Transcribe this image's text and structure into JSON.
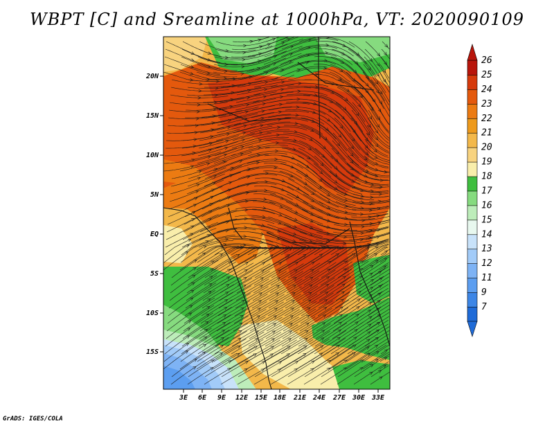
{
  "title": "WBPT [C] and Sreamline at 1000hPa, VT: 2020090109",
  "credit": "GrADS: IGES/COLA",
  "map": {
    "lat_labels": [
      "20N",
      "15N",
      "10N",
      "5N",
      "EQ",
      "5S",
      "10S",
      "15S"
    ],
    "lon_labels": [
      "3E",
      "6E",
      "9E",
      "12E",
      "15E",
      "18E",
      "21E",
      "24E",
      "27E",
      "30E",
      "33E"
    ]
  },
  "colorbar": {
    "labels": [
      "7",
      "9",
      "11",
      "12",
      "13",
      "14",
      "15",
      "16",
      "17",
      "18",
      "19",
      "20",
      "21",
      "22",
      "23",
      "24",
      "25",
      "26"
    ],
    "colors": [
      "#1f6bd8",
      "#3d86e6",
      "#5c9ef0",
      "#7eb3f5",
      "#a2cbf8",
      "#c8e2fa",
      "#e8f8ef",
      "#bdedba",
      "#86db7f",
      "#3fbe3f",
      "#f9eeab",
      "#f8d37f",
      "#f3b84a",
      "#ee9a1c",
      "#ec7b12",
      "#e4590d",
      "#d63a0c",
      "#b8150b"
    ]
  },
  "chart_data": {
    "type": "heatmap",
    "title": "WBPT [C] and Sreamline at 1000hPa, VT: 2020090109",
    "variable": "Wet-bulb potential temperature (WBPT) at 1000hPa",
    "units": "C",
    "valid_time": "2020090109",
    "overlay": "streamlines",
    "x_ticks": [
      "3E",
      "6E",
      "9E",
      "12E",
      "15E",
      "18E",
      "21E",
      "24E",
      "27E",
      "30E",
      "33E"
    ],
    "y_ticks": [
      "20N",
      "15N",
      "10N",
      "5N",
      "EQ",
      "5S",
      "10S",
      "15S"
    ],
    "xlim": [
      0,
      35
    ],
    "ylim": [
      -20,
      25
    ],
    "colorbar_levels": [
      7,
      9,
      11,
      12,
      13,
      14,
      15,
      16,
      17,
      18,
      19,
      20,
      21,
      22,
      23,
      24,
      25,
      26
    ]
  }
}
